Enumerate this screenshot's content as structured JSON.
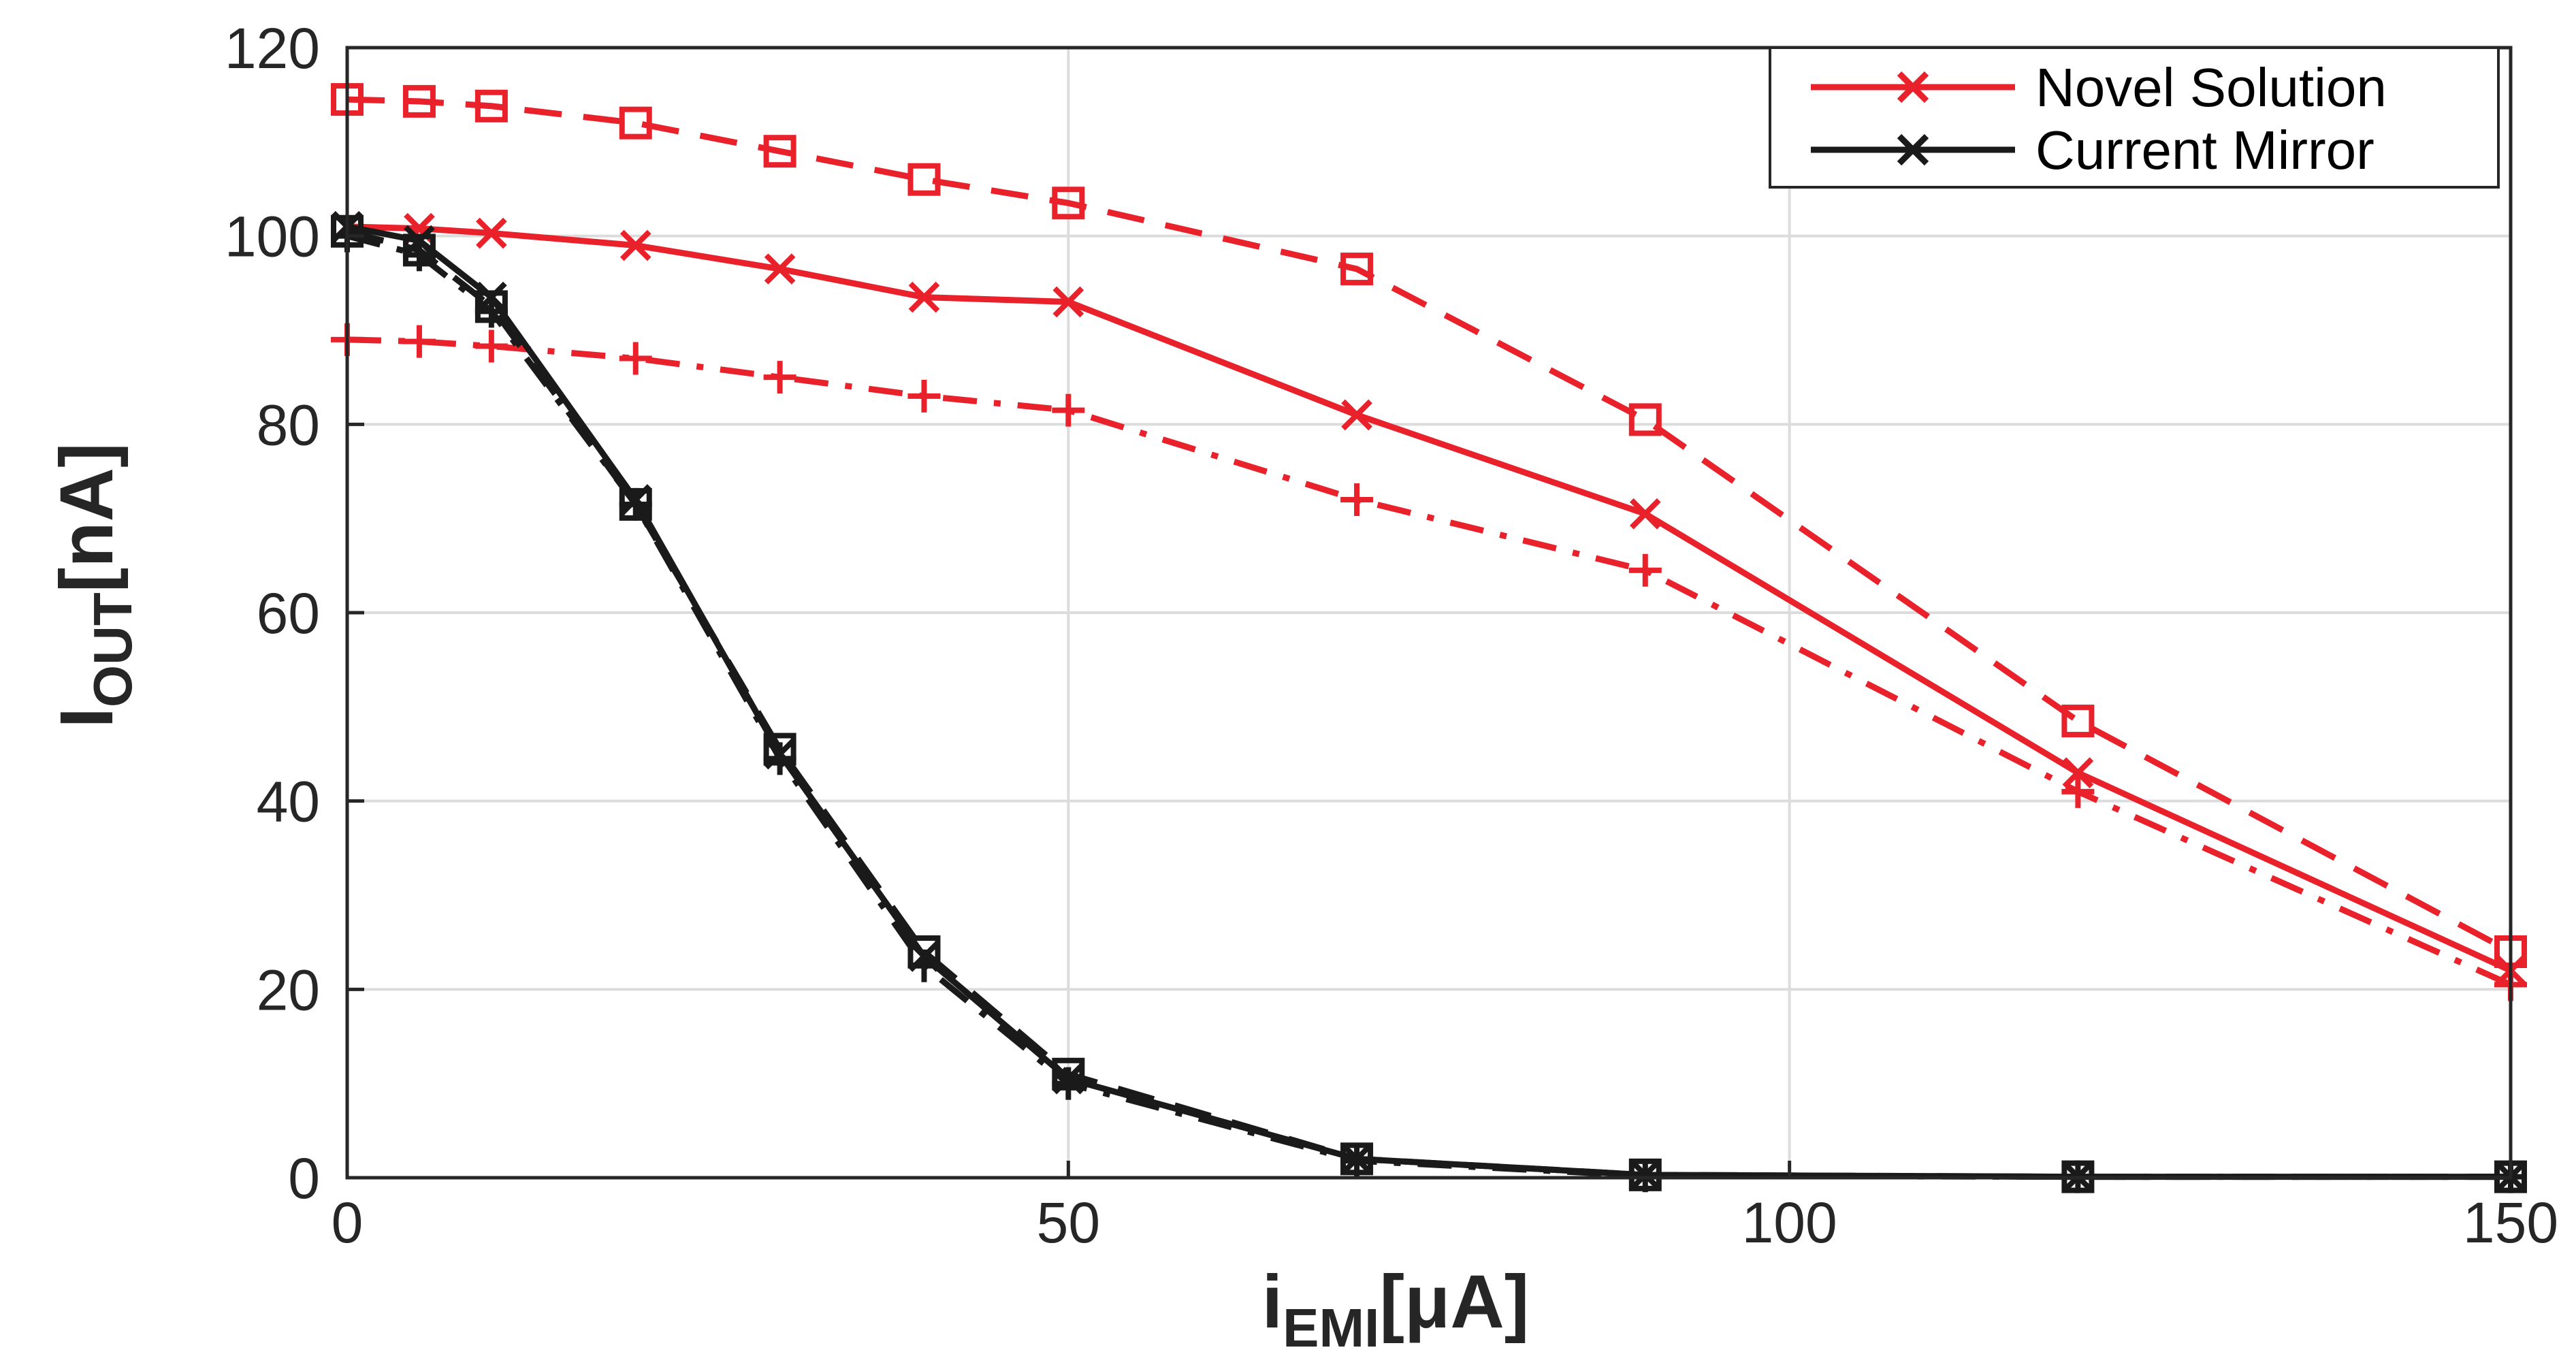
{
  "chart_data": {
    "type": "line",
    "title": "",
    "xlabel": {
      "main": "i",
      "sub": "EMI",
      "unit": "[μA]"
    },
    "ylabel": {
      "main": "I",
      "sub": "OUT",
      "unit": "[nA]"
    },
    "xlim": [
      0,
      150
    ],
    "ylim": [
      0,
      120
    ],
    "xticks": [
      0,
      50,
      100,
      150
    ],
    "yticks": [
      0,
      20,
      40,
      60,
      80,
      100,
      120
    ],
    "grid": true,
    "legend_position": "top-right",
    "legend": [
      {
        "label": "Novel Solution",
        "color": "#e8212b",
        "marker": "x"
      },
      {
        "label": "Current Mirror",
        "color": "#1a1a1a",
        "marker": "x"
      }
    ],
    "x": [
      0,
      5,
      10,
      20,
      30,
      40,
      50,
      70,
      90,
      120,
      150
    ],
    "series": [
      {
        "name": "Novel Solution (nominal)",
        "color": "#e8212b",
        "dash": "solid",
        "marker": "x",
        "values": [
          101,
          100.8,
          100.3,
          99,
          96.5,
          93.5,
          93,
          81,
          70.5,
          43,
          22
        ]
      },
      {
        "name": "Novel Solution (upper)",
        "color": "#e8212b",
        "dash": "dashed",
        "marker": "square",
        "values": [
          114.5,
          114.3,
          113.8,
          112,
          109,
          106,
          103.5,
          96.5,
          80.5,
          48.5,
          24
        ]
      },
      {
        "name": "Novel Solution (lower)",
        "color": "#e8212b",
        "dash": "dashdot",
        "marker": "plus",
        "values": [
          89,
          88.8,
          88.3,
          87,
          85,
          83,
          81.5,
          72,
          64.5,
          41,
          20.5
        ]
      },
      {
        "name": "Current Mirror (nominal)",
        "color": "#1a1a1a",
        "dash": "solid",
        "marker": "x",
        "values": [
          101,
          99.5,
          93.5,
          72,
          45,
          23.5,
          10.5,
          2,
          0.3,
          0.1,
          0.1
        ]
      },
      {
        "name": "Current Mirror (upper)",
        "color": "#1a1a1a",
        "dash": "dashed",
        "marker": "square",
        "values": [
          100.5,
          98.5,
          92.5,
          71.5,
          45.5,
          24,
          11,
          2,
          0.3,
          0.1,
          0.1
        ]
      },
      {
        "name": "Current Mirror (lower)",
        "color": "#1a1a1a",
        "dash": "dashdot",
        "marker": "plus",
        "values": [
          100,
          98,
          92,
          71.5,
          44.5,
          22.5,
          10,
          1.8,
          0.2,
          0.1,
          0.1
        ]
      }
    ]
  }
}
